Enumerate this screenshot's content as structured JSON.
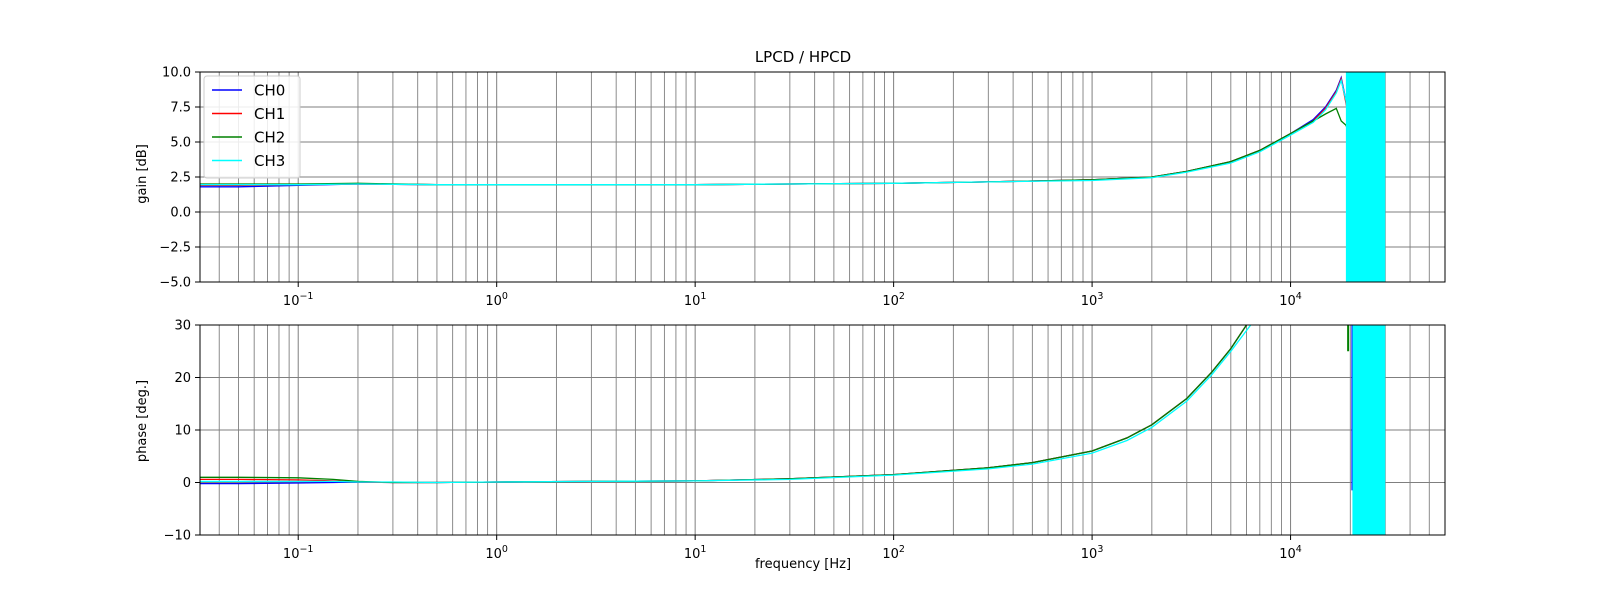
{
  "chart_data": [
    {
      "type": "line",
      "title": "LPCD / HPCD",
      "xlabel": "",
      "ylabel": "gain [dB]",
      "xscale": "log",
      "xlim": [
        0.032,
        60000
      ],
      "ylim": [
        -5.0,
        10.0
      ],
      "yticks": [
        "−5.0",
        "−2.5",
        "0.0",
        "2.5",
        "5.0",
        "7.5",
        "10.0"
      ],
      "ytick_values": [
        -5.0,
        -2.5,
        0.0,
        2.5,
        5.0,
        7.5,
        10.0
      ],
      "xtick_values": [
        0.1,
        1,
        10,
        100,
        1000,
        10000
      ],
      "xtick_exponents": [
        "−1",
        "0",
        "1",
        "2",
        "3",
        "4"
      ],
      "xtick_base": "10",
      "grid": "major and minor",
      "legend": {
        "placement": "upper-left",
        "entries": [
          "CH0",
          "CH1",
          "CH2",
          "CH3"
        ]
      },
      "series": [
        {
          "name": "CH0",
          "color": "#0000ff",
          "x": [
            0.032,
            0.05,
            0.1,
            0.2,
            0.5,
            1,
            3,
            10,
            30,
            100,
            300,
            1000,
            2000,
            3000,
            5000,
            7000,
            10000,
            13000,
            15000,
            17000,
            18000,
            19000,
            20000,
            21000,
            22000,
            23000
          ],
          "y": [
            1.8,
            1.8,
            1.9,
            2.0,
            1.95,
            1.95,
            1.95,
            1.95,
            2.0,
            2.05,
            2.15,
            2.3,
            2.5,
            2.9,
            3.6,
            4.4,
            5.6,
            6.6,
            7.5,
            8.7,
            9.6,
            8.0,
            6.0,
            3.0,
            1.0,
            -5.0
          ]
        },
        {
          "name": "CH1",
          "color": "#ff0000",
          "x": [
            0.032,
            0.05,
            0.1,
            0.2,
            0.5,
            1,
            3,
            10,
            30,
            100,
            300,
            1000,
            2000,
            3000,
            5000,
            7000,
            10000,
            13000,
            15000,
            17000,
            18000,
            19000,
            20000,
            21000,
            22000,
            23000
          ],
          "y": [
            1.9,
            1.9,
            1.95,
            2.0,
            1.95,
            1.95,
            1.95,
            1.95,
            2.0,
            2.05,
            2.15,
            2.3,
            2.5,
            2.9,
            3.6,
            4.4,
            5.6,
            6.5,
            7.4,
            8.6,
            9.5,
            7.8,
            6.2,
            4.0,
            1.5,
            -5.0
          ]
        },
        {
          "name": "CH2",
          "color": "#008000",
          "x": [
            0.032,
            0.05,
            0.1,
            0.2,
            0.5,
            1,
            3,
            10,
            30,
            100,
            300,
            1000,
            2000,
            3000,
            5000,
            7000,
            10000,
            13000,
            15000,
            17000,
            18000,
            19000,
            20000,
            21000,
            22000,
            23000
          ],
          "y": [
            2.0,
            2.0,
            2.0,
            2.05,
            1.95,
            1.95,
            1.95,
            1.95,
            2.0,
            2.05,
            2.15,
            2.3,
            2.5,
            2.9,
            3.6,
            4.4,
            5.6,
            6.5,
            7.0,
            7.4,
            6.5,
            6.2,
            5.5,
            3.5,
            1.5,
            -5.0
          ]
        },
        {
          "name": "CH3",
          "color": "#00ffff",
          "x": [
            0.032,
            0.05,
            0.1,
            0.2,
            0.5,
            1,
            3,
            10,
            30,
            100,
            300,
            1000,
            2000,
            3000,
            5000,
            7000,
            10000,
            13000,
            15000,
            17000,
            18000,
            19000,
            20000,
            21000,
            22000,
            23000
          ],
          "y": [
            1.95,
            1.95,
            1.95,
            2.0,
            1.95,
            1.95,
            1.95,
            1.95,
            2.0,
            2.05,
            2.15,
            2.25,
            2.45,
            2.85,
            3.5,
            4.3,
            5.5,
            6.4,
            7.3,
            8.5,
            9.4,
            8.0,
            6.0,
            3.5,
            1.0,
            -5.0
          ]
        }
      ],
      "noise_band": {
        "color": "#00ffff",
        "x": [
          19000,
          30000
        ],
        "ymin": -5.0,
        "ymax": 10.0
      }
    },
    {
      "type": "line",
      "title": "",
      "xlabel": "frequency [Hz]",
      "ylabel": "phase [deg.]",
      "xscale": "log",
      "xlim": [
        0.032,
        60000
      ],
      "ylim": [
        -10,
        30
      ],
      "yticks": [
        "−10",
        "0",
        "10",
        "20",
        "30"
      ],
      "ytick_values": [
        -10,
        0,
        10,
        20,
        30
      ],
      "xtick_values": [
        0.1,
        1,
        10,
        100,
        1000,
        10000
      ],
      "xtick_exponents": [
        "−1",
        "0",
        "1",
        "2",
        "3",
        "4"
      ],
      "xtick_base": "10",
      "grid": "major and minor",
      "series": [
        {
          "name": "CH0",
          "color": "#0000ff",
          "x": [
            0.032,
            0.05,
            0.1,
            0.15,
            0.2,
            0.3,
            0.5,
            1,
            3,
            10,
            30,
            100,
            300,
            500,
            1000,
            1500,
            2000,
            3000,
            4000,
            5000,
            6000
          ],
          "y": [
            -0.2,
            -0.2,
            -0.1,
            0.0,
            0.1,
            0.0,
            0.0,
            0.1,
            0.2,
            0.3,
            0.7,
            1.5,
            2.8,
            3.8,
            6.0,
            8.5,
            11.0,
            16.0,
            21.0,
            25.5,
            30.0
          ]
        },
        {
          "name": "CH1",
          "color": "#ff0000",
          "x": [
            0.032,
            0.05,
            0.1,
            0.15,
            0.2,
            0.3,
            0.5,
            1,
            3,
            10,
            30,
            100,
            300,
            500,
            1000,
            1500,
            2000,
            3000,
            4000,
            5000,
            6000
          ],
          "y": [
            0.6,
            0.6,
            0.5,
            0.3,
            0.1,
            0.0,
            0.0,
            0.1,
            0.2,
            0.3,
            0.7,
            1.5,
            2.8,
            3.8,
            6.0,
            8.5,
            11.0,
            16.0,
            21.0,
            25.5,
            30.0
          ]
        },
        {
          "name": "CH2",
          "color": "#008000",
          "x": [
            0.032,
            0.05,
            0.1,
            0.15,
            0.2,
            0.3,
            0.5,
            1,
            3,
            10,
            30,
            100,
            300,
            500,
            1000,
            1500,
            2000,
            3000,
            4000,
            5000,
            6000
          ],
          "y": [
            1.0,
            1.0,
            0.9,
            0.6,
            0.2,
            0.0,
            0.0,
            0.1,
            0.2,
            0.3,
            0.7,
            1.5,
            2.8,
            3.8,
            6.0,
            8.5,
            11.0,
            16.0,
            21.0,
            25.5,
            30.0
          ]
        },
        {
          "name": "CH3",
          "color": "#00ffff",
          "x": [
            0.032,
            0.05,
            0.1,
            0.15,
            0.2,
            0.3,
            0.5,
            1,
            3,
            10,
            30,
            100,
            300,
            500,
            1000,
            1500,
            2000,
            3000,
            4000,
            5000,
            6300
          ],
          "y": [
            0.2,
            0.2,
            0.2,
            0.2,
            0.1,
            0.1,
            0.0,
            0.1,
            0.2,
            0.3,
            0.6,
            1.4,
            2.6,
            3.5,
            5.6,
            8.0,
            10.5,
            15.5,
            20.5,
            25.0,
            30.0
          ]
        }
      ],
      "spikes": [
        {
          "color": "#0000ff",
          "x": 20500,
          "y": [
            30,
            -1.5
          ]
        },
        {
          "color": "#008000",
          "x": 19500,
          "y": [
            30,
            25
          ]
        }
      ],
      "noise_band": {
        "color": "#00ffff",
        "x": [
          20500,
          30000
        ],
        "ymin": -10,
        "ymax": 30
      }
    }
  ]
}
